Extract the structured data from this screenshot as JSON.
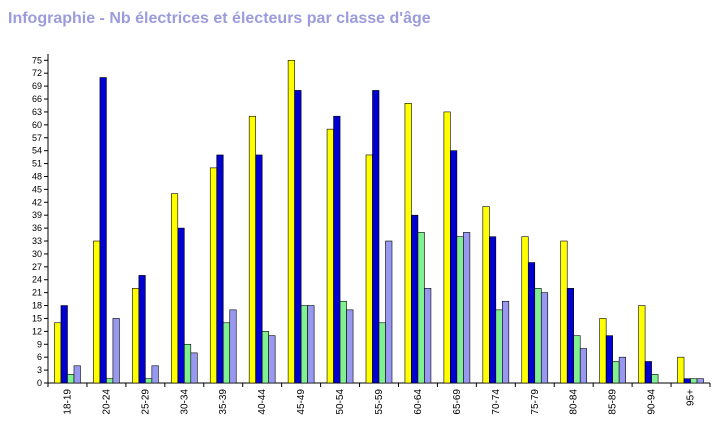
{
  "title": "Infographie - Nb électrices et électeurs par classe d'âge",
  "chart_data": {
    "type": "bar",
    "title": "Infographie - Nb électrices et électeurs par classe d'âge",
    "xlabel": "",
    "ylabel": "",
    "ylim": [
      0,
      76
    ],
    "yticks": [
      0,
      3,
      6,
      9,
      12,
      15,
      18,
      21,
      24,
      27,
      30,
      33,
      36,
      39,
      42,
      45,
      48,
      51,
      54,
      57,
      60,
      63,
      66,
      69,
      72,
      75
    ],
    "grid": false,
    "legend": "none",
    "categories": [
      "18-19",
      "20-24",
      "25-29",
      "30-34",
      "35-39",
      "40-44",
      "45-49",
      "50-54",
      "55-59",
      "60-64",
      "65-69",
      "70-74",
      "75-79",
      "80-84",
      "85-89",
      "90-94",
      "95+"
    ],
    "series": [
      {
        "color": "#ffff00",
        "values": [
          14,
          33,
          22,
          44,
          50,
          62,
          75,
          59,
          53,
          65,
          63,
          41,
          34,
          33,
          15,
          18,
          6
        ]
      },
      {
        "color": "#0000d0",
        "values": [
          18,
          71,
          25,
          36,
          53,
          53,
          68,
          62,
          68,
          39,
          54,
          34,
          28,
          22,
          11,
          5,
          1
        ]
      },
      {
        "color": "#80f090",
        "values": [
          2,
          1,
          1,
          9,
          14,
          12,
          18,
          19,
          14,
          35,
          34,
          17,
          22,
          11,
          5,
          2,
          1
        ]
      },
      {
        "color": "#9898f0",
        "values": [
          4,
          15,
          4,
          7,
          17,
          11,
          18,
          17,
          33,
          22,
          35,
          19,
          21,
          8,
          6,
          0,
          1
        ]
      }
    ]
  }
}
